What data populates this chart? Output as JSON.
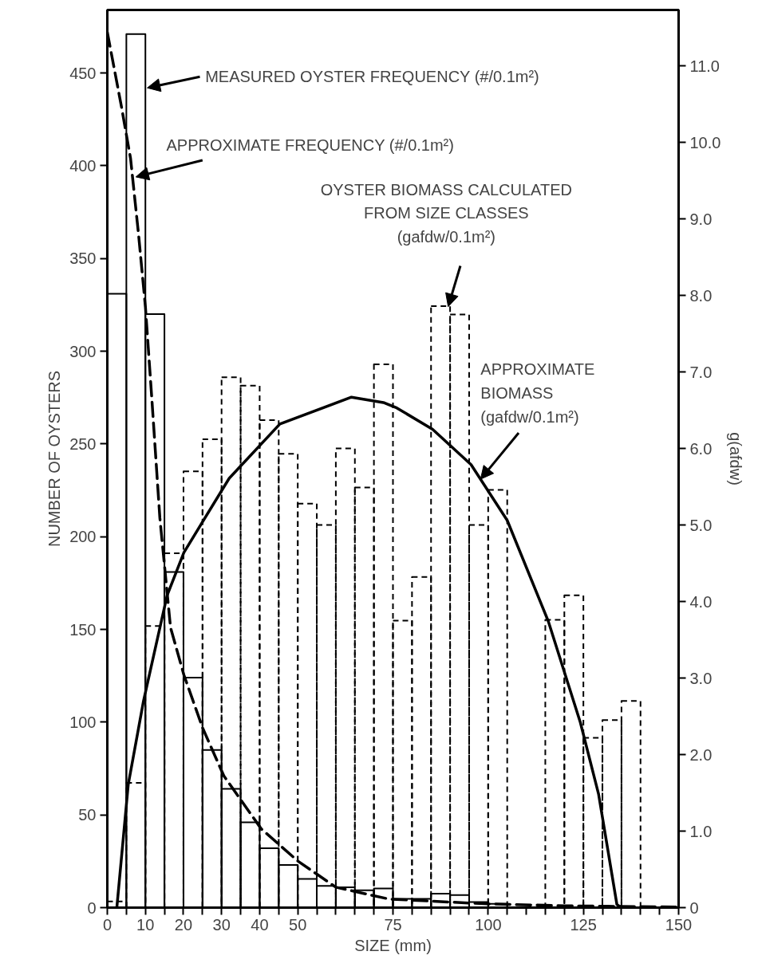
{
  "chart_data": {
    "type": "histogram",
    "xlabel": "SIZE (mm)",
    "ylabel": "NUMBER OF OYSTERS",
    "y2label": "g(afdw)",
    "xlim": [
      0,
      150
    ],
    "xticks": [
      0,
      {
        "value": 5,
        "label": null
      },
      10,
      {
        "value": 15,
        "label": null
      },
      20,
      {
        "value": 25,
        "label": null
      },
      30,
      {
        "value": 35,
        "label": null
      },
      40,
      {
        "value": 45,
        "label": null
      },
      50,
      {
        "value": 55,
        "label": null
      },
      {
        "value": 60,
        "label": null
      },
      {
        "value": 65,
        "label": null
      },
      {
        "value": 70,
        "label": null
      },
      75,
      {
        "value": 80,
        "label": null
      },
      {
        "value": 85,
        "label": null
      },
      {
        "value": 90,
        "label": null
      },
      {
        "value": 95,
        "label": null
      },
      100,
      {
        "value": 105,
        "label": null
      },
      {
        "value": 110,
        "label": null
      },
      {
        "value": 115,
        "label": null
      },
      {
        "value": 120,
        "label": null
      },
      125,
      {
        "value": 130,
        "label": null
      },
      {
        "value": 135,
        "label": null
      },
      {
        "value": 140,
        "label": null
      },
      {
        "value": 145,
        "label": null
      },
      150
    ],
    "ylim": [
      0,
      484
    ],
    "yticks": [
      0,
      50,
      100,
      150,
      200,
      250,
      300,
      350,
      400,
      450
    ],
    "y2lim": [
      0,
      11.73
    ],
    "y2ticks": [
      0,
      {
        "value": 1,
        "label": "1.0"
      },
      {
        "value": 2,
        "label": "2.0"
      },
      {
        "value": 3,
        "label": "3.0"
      },
      {
        "value": 4,
        "label": "4.0"
      },
      {
        "value": 5,
        "label": "5.0"
      },
      {
        "value": 6,
        "label": "6.0"
      },
      {
        "value": 7,
        "label": "7.0"
      },
      {
        "value": 8,
        "label": "8.0"
      },
      {
        "value": 9,
        "label": "9.0"
      },
      {
        "value": 10,
        "label": "10.0"
      },
      {
        "value": 11,
        "label": "11.0"
      }
    ],
    "grid": false,
    "series": [
      {
        "color": "#000000",
        "line_style": "solid",
        "bins": [
          0,
          5,
          10,
          15,
          20,
          25,
          30,
          35,
          40,
          45,
          50,
          55,
          60,
          65,
          70,
          75,
          80,
          85,
          90,
          95,
          100,
          105
        ],
        "values": [
          331,
          471,
          320,
          181,
          124,
          85,
          64,
          46,
          32,
          23,
          15.5,
          11.7,
          11,
          9.4,
          10.3,
          4.7,
          4.7,
          7.5,
          6.8,
          3,
          2
        ]
      },
      {
        "type": "line",
        "color": "#000000",
        "line_style": "dashed",
        "x": [
          0,
          3.7,
          6.1,
          8.2,
          10,
          11.7,
          13.8,
          16.6,
          20.1,
          25,
          30.6,
          40.4,
          50.1,
          60,
          74,
          100,
          120,
          140,
          150
        ],
        "values": [
          472,
          432,
          404,
          363,
          324,
          274,
          210,
          151,
          125.5,
          97,
          71,
          42.5,
          25,
          11,
          4.6,
          2,
          1,
          0.5,
          0.3
        ]
      },
      {
        "axis": "y2",
        "color": "#000000",
        "line_style": "dotted",
        "bins": [
          0,
          5,
          10,
          15,
          20,
          25,
          30,
          35,
          40,
          45,
          50,
          55,
          60,
          65,
          70,
          75,
          80,
          85,
          90,
          95,
          100,
          105,
          110,
          115,
          120,
          125,
          130,
          135,
          140
        ],
        "values": [
          0.08,
          1.63,
          3.68,
          4.63,
          5.7,
          6.12,
          6.93,
          6.82,
          6.37,
          5.93,
          5.28,
          5.0,
          6.0,
          5.49,
          7.1,
          3.75,
          4.32,
          7.86,
          7.75,
          5.0,
          5.46,
          0,
          0,
          3.76,
          4.08,
          2.22,
          2.45,
          2.7
        ]
      },
      {
        "type": "line",
        "axis": "y2",
        "color": "#000000",
        "line_style": "solid",
        "x": [
          2.5,
          5.5,
          9.5,
          15.7,
          20.1,
          32,
          45.3,
          64.1,
          72.5,
          76,
          85.4,
          95.5,
          105,
          115.8,
          124.2,
          129,
          133.8,
          135
        ],
        "values": [
          0,
          1.61,
          2.7,
          4.08,
          4.64,
          5.61,
          6.32,
          6.67,
          6.6,
          6.53,
          6.25,
          5.79,
          5.06,
          3.74,
          2.42,
          1.48,
          0.04,
          0
        ]
      }
    ],
    "annotations": [
      {
        "text": "MEASURED OYSTER FREQUENCY (#/0.1m²)",
        "x": 10.5,
        "y": 442
      },
      {
        "text": "APPROXIMATE FREQUENCY (#/0.1m²)",
        "x": 7.5,
        "y": 394
      },
      {
        "text": "OYSTER BIOMASS CALCULATED\nFROM SIZE CLASSES\n(gafdw/0.1m²)",
        "x": 89.5,
        "y": 324
      },
      {
        "text": "APPROXIMATE\nBIOMASS\n(gafdw/0.1m²)",
        "x": 98,
        "y": 231
      }
    ]
  }
}
